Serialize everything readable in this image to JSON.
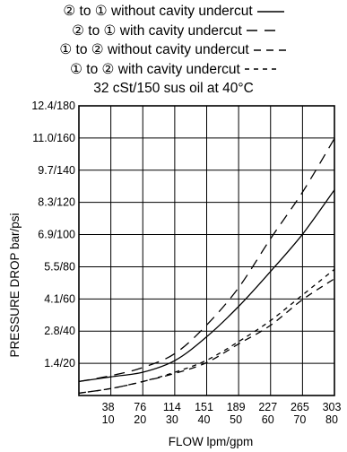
{
  "chart_data": {
    "type": "line",
    "title": "",
    "subtitle": "32 cSt/150 sus oil at 40°C",
    "xlabel": "FLOW lpm/gpm",
    "ylabel": "PRESSURE DROP bar/psi",
    "xlim": [
      0,
      303
    ],
    "ylim": [
      0,
      12.4
    ],
    "grid": true,
    "legend_position": "top",
    "x_ticks_lpm": [
      "38",
      "76",
      "114",
      "151",
      "189",
      "227",
      "265",
      "303"
    ],
    "x_ticks_gpm": [
      "10",
      "20",
      "30",
      "40",
      "50",
      "60",
      "70",
      "80"
    ],
    "y_ticks": [
      "1.4/20",
      "2.8/40",
      "4.1/60",
      "5.5/80",
      "6.9/100",
      "8.3/120",
      "9.7/140",
      "11.0/160",
      "12.4/180"
    ],
    "series": [
      {
        "name": "② to ① without cavity undercut",
        "dash": "solid",
        "x": [
          0,
          38,
          76,
          114,
          151,
          189,
          227,
          265,
          303
        ],
        "y": [
          0.6,
          0.8,
          1.0,
          1.5,
          2.5,
          3.8,
          5.3,
          6.9,
          8.8
        ]
      },
      {
        "name": "② to ① with cavity undercut",
        "dash": "long",
        "x": [
          0,
          38,
          76,
          114,
          151,
          189,
          227,
          265,
          303
        ],
        "y": [
          0.6,
          0.85,
          1.2,
          1.8,
          3.0,
          4.6,
          6.7,
          8.7,
          11.0
        ]
      },
      {
        "name": "① to ② without cavity undercut",
        "dash": "medium",
        "x": [
          0,
          38,
          76,
          114,
          151,
          189,
          227,
          265,
          303
        ],
        "y": [
          0.1,
          0.3,
          0.6,
          0.95,
          1.4,
          2.2,
          3.0,
          4.1,
          5.0
        ]
      },
      {
        "name": "① to ② with cavity undercut",
        "dash": "short",
        "x": [
          0,
          38,
          76,
          114,
          151,
          189,
          227,
          265,
          303
        ],
        "y": [
          0.1,
          0.3,
          0.6,
          1.0,
          1.5,
          2.3,
          3.2,
          4.3,
          5.4
        ]
      }
    ]
  }
}
